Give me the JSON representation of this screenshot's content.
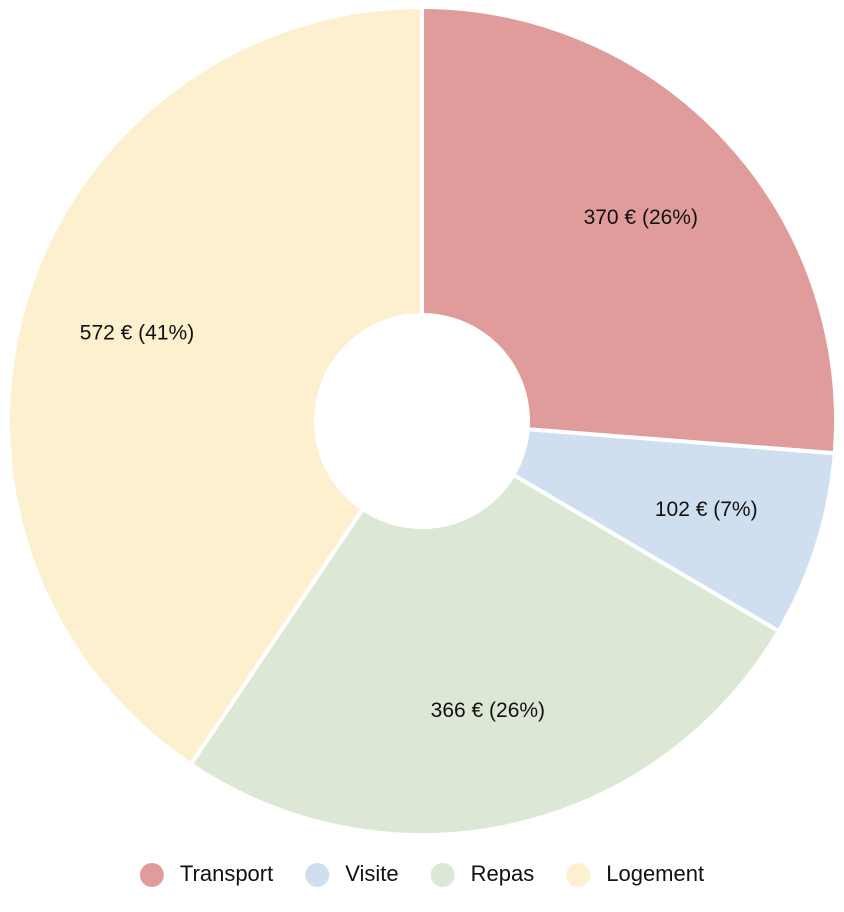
{
  "chart_data": {
    "type": "pie",
    "categories": [
      "Transport",
      "Visite",
      "Repas",
      "Logement"
    ],
    "values": [
      370,
      102,
      366,
      572
    ],
    "value_labels": [
      "370 € (26%)",
      "102 € (7%)",
      "366 € (26%)",
      "572 € (41%)"
    ],
    "colors": [
      "#e09c9b",
      "#d0dff0",
      "#dce8d5",
      "#fcf0cf"
    ],
    "legend": "bottom"
  }
}
